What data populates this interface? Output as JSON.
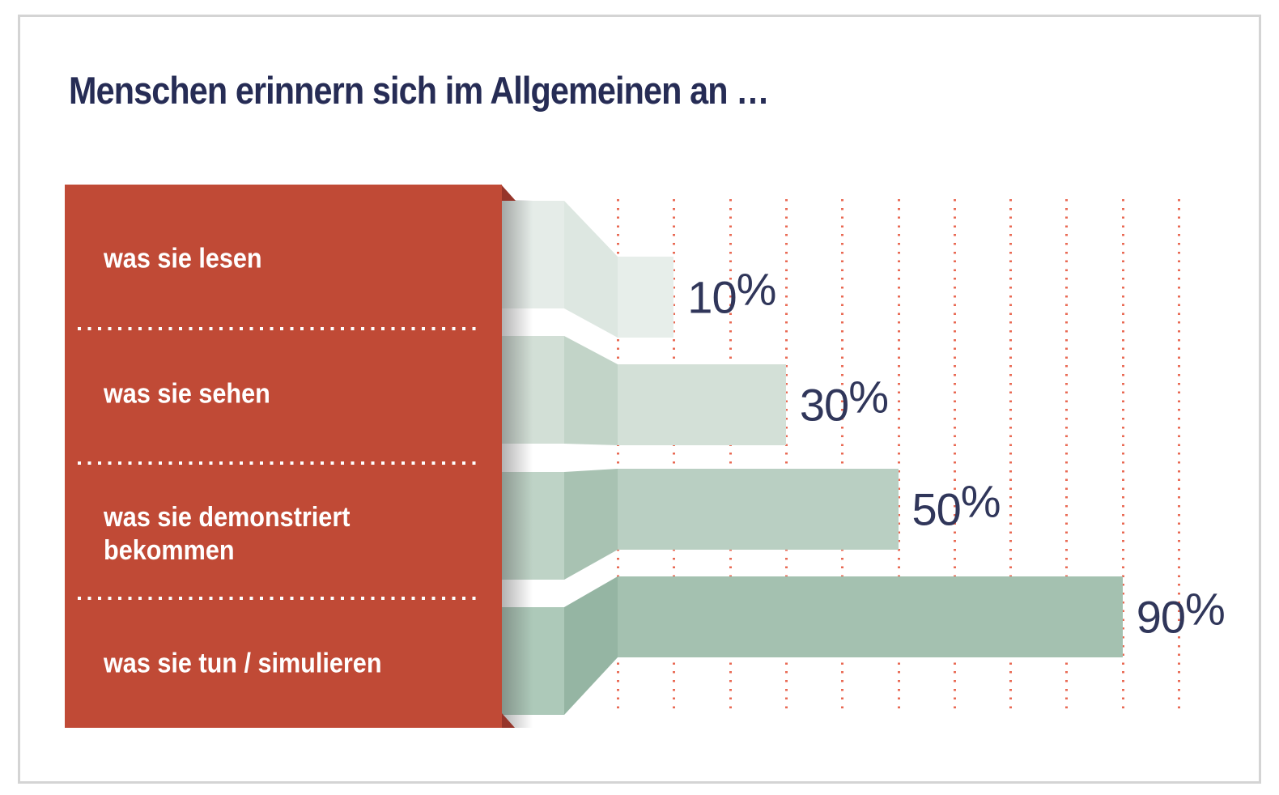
{
  "page": {
    "title": "Menschen erinnern sich im Allgemeinen an …"
  },
  "chart_data": {
    "type": "bar",
    "orientation": "horizontal",
    "title": "Menschen erinnern sich im Allgemeinen an …",
    "categories": [
      "was sie lesen",
      "was sie sehen",
      "was sie demonstriert bekommen",
      "was sie tun / simulieren"
    ],
    "values": [
      10,
      30,
      50,
      90
    ],
    "value_labels": [
      "10%",
      "30%",
      "50%",
      "90%"
    ],
    "unit": "%",
    "xlim": [
      0,
      100
    ],
    "gridline_step": 10,
    "grid": "dotted red vertical lines",
    "legend": "none",
    "style_notes": "red category panel left, light-to-dark green 3D funnel bars right",
    "colors": {
      "panel": "#c04a36",
      "panel_fold": "#96352a",
      "panel_text": "#ffffff",
      "separator_dots": "#ffffff",
      "title_text": "#262c55",
      "value_text": "#30365a",
      "grid_dots": "#e96a54",
      "frame_border": "#d4d4d4",
      "background": "#ffffff",
      "bars": [
        "#e7eeea",
        "#d3e0d7",
        "#b9cfc2",
        "#a4c1b0"
      ],
      "bands": [
        "#e5ece8",
        "#d2dfd6",
        "#bed3c6",
        "#adc9b9"
      ],
      "funnels": [
        "#dde7e1",
        "#c2d4c8",
        "#a8c2b2",
        "#95b5a3"
      ]
    }
  }
}
